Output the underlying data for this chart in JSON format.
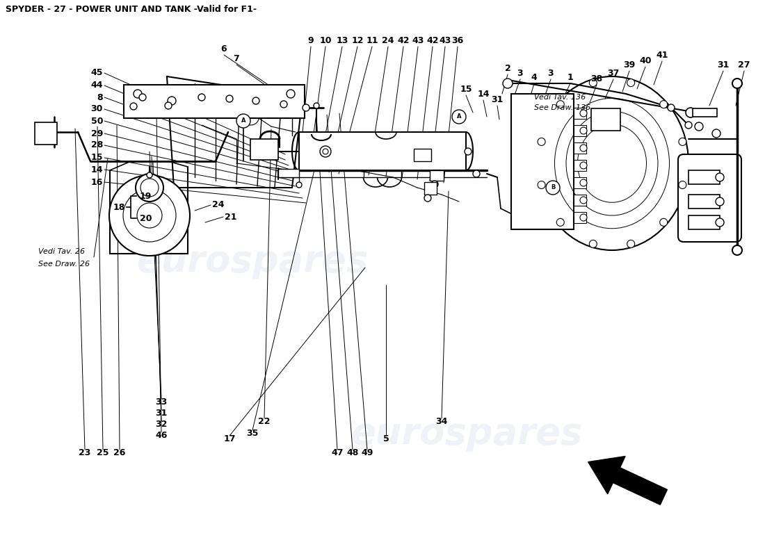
{
  "title": "SPYDER - 27 - POWER UNIT AND TANK -Valid for F1-",
  "bg_color": "#ffffff",
  "line_color": "#000000",
  "watermark_text": "eurospares",
  "watermark_color": "#c8d4e8",
  "watermark_alpha": 0.28,
  "watermark_fontsize": 38,
  "watermark1": [
    0.33,
    0.53
  ],
  "watermark2": [
    0.61,
    0.22
  ],
  "vedi26_line1": "Vedi Tav. 26",
  "vedi26_line2": "See Draw. 26",
  "vedi136_line1": "Vedi Tav. 136",
  "vedi136_line2": "See Draw. 136",
  "label_fontsize": 9,
  "title_fontsize": 9,
  "label_fontweight": "bold"
}
